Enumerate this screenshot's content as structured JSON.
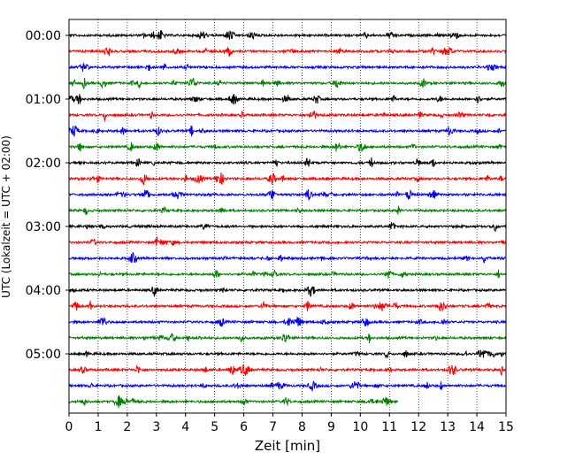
{
  "chart_data": {
    "type": "line",
    "title": "",
    "xlabel": "Zeit  [min]",
    "ylabel": "UTC (Lokalzeit = UTC + 02:00)",
    "xlim": [
      0,
      15
    ],
    "x_ticks": [
      "0",
      "1",
      "2",
      "3",
      "4",
      "5",
      "6",
      "7",
      "8",
      "9",
      "10",
      "11",
      "12",
      "13",
      "14",
      "15"
    ],
    "y_tick_labels": [
      "00:00",
      "01:00",
      "02:00",
      "03:00",
      "04:00",
      "05:00"
    ],
    "grid": "vertical dotted",
    "minutes_per_row": 15,
    "color_cycle": [
      "#000000",
      "#ff0000",
      "#0000ff",
      "#008000"
    ],
    "rows": [
      {
        "start": "00:00",
        "end_min": 15
      },
      {
        "start": "00:15",
        "end_min": 15
      },
      {
        "start": "00:30",
        "end_min": 15
      },
      {
        "start": "00:45",
        "end_min": 15
      },
      {
        "start": "01:00",
        "end_min": 15
      },
      {
        "start": "01:15",
        "end_min": 15
      },
      {
        "start": "01:30",
        "end_min": 15
      },
      {
        "start": "01:45",
        "end_min": 15
      },
      {
        "start": "02:00",
        "end_min": 15
      },
      {
        "start": "02:15",
        "end_min": 15
      },
      {
        "start": "02:30",
        "end_min": 15
      },
      {
        "start": "02:45",
        "end_min": 15
      },
      {
        "start": "03:00",
        "end_min": 15
      },
      {
        "start": "03:15",
        "end_min": 15
      },
      {
        "start": "03:30",
        "end_min": 15
      },
      {
        "start": "03:45",
        "end_min": 15
      },
      {
        "start": "04:00",
        "end_min": 15
      },
      {
        "start": "04:15",
        "end_min": 15
      },
      {
        "start": "04:30",
        "end_min": 15
      },
      {
        "start": "04:45",
        "end_min": 15
      },
      {
        "start": "05:00",
        "end_min": 15
      },
      {
        "start": "05:15",
        "end_min": 15
      },
      {
        "start": "05:30",
        "end_min": 15
      },
      {
        "start": "05:45",
        "end_min": 11.3
      }
    ]
  }
}
